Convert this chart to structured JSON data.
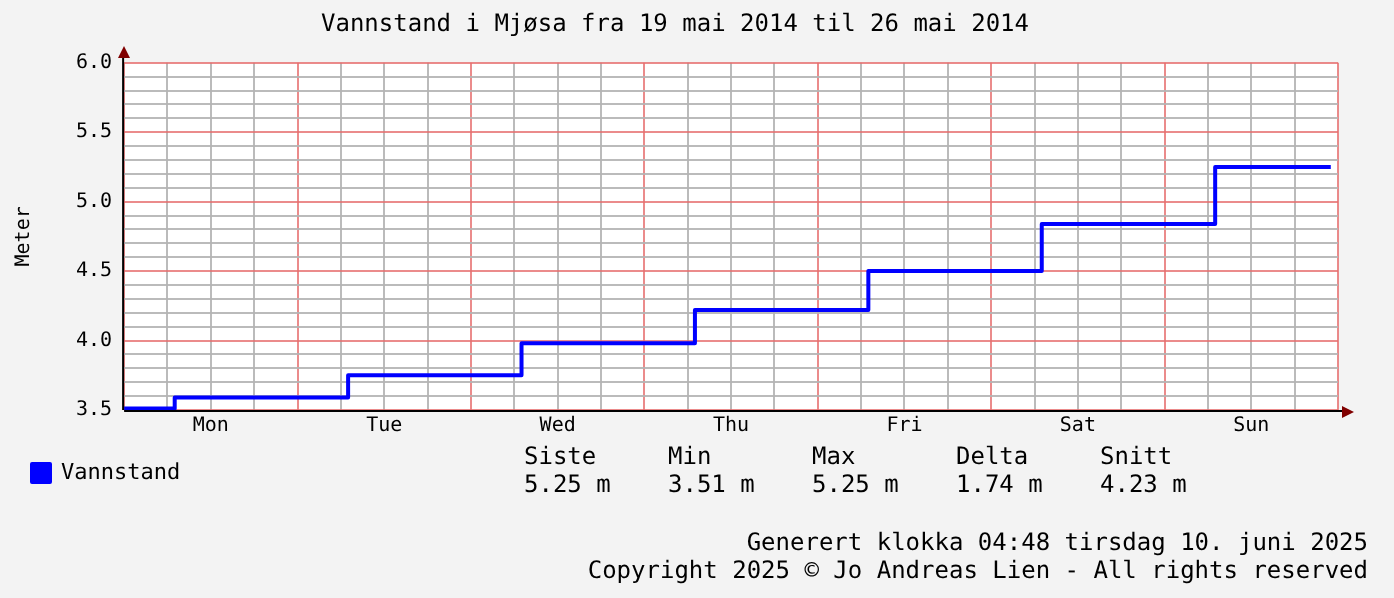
{
  "chart_data": {
    "type": "step",
    "title": "Vannstand i Mjøsa fra 19 mai 2014 til 26 mai 2014",
    "ylabel": "Meter",
    "categories": [
      null,
      null,
      null,
      null,
      null,
      null,
      null,
      null,
      null,
      null,
      null,
      null,
      "Mon",
      null,
      null,
      null,
      null,
      null,
      null,
      null,
      null,
      null,
      null,
      null,
      null,
      null,
      null,
      null,
      null,
      null,
      null,
      null,
      null,
      null,
      null,
      null,
      "Tue",
      null,
      null,
      null,
      null,
      null,
      null,
      null,
      null,
      null,
      null,
      null,
      null,
      null,
      null,
      null,
      null,
      null,
      null,
      null,
      null,
      null,
      null,
      null,
      "Wed",
      null,
      null,
      null,
      null,
      null,
      null,
      null,
      null,
      null,
      null,
      null,
      null,
      null,
      null,
      null,
      null,
      null,
      null,
      null,
      null,
      null,
      null,
      null,
      "Thu",
      null,
      null,
      null,
      null,
      null,
      null,
      null,
      null,
      null,
      null,
      null,
      null,
      null,
      null,
      null,
      null,
      null,
      null,
      null,
      null,
      null,
      null,
      null,
      "Fri",
      null,
      null,
      null,
      null,
      null,
      null,
      null,
      null,
      null,
      null,
      null,
      null,
      null,
      null,
      null,
      null,
      null,
      null,
      null,
      null,
      null,
      null,
      null,
      "Sat",
      null,
      null,
      null,
      null,
      null,
      null,
      null,
      null,
      null,
      null,
      null,
      null,
      null,
      null,
      null,
      null,
      null,
      null,
      null,
      null,
      null,
      null,
      null,
      "Sun",
      null,
      null,
      null,
      null,
      null,
      null,
      null,
      null,
      null,
      null,
      null,
      null
    ],
    "series": [
      {
        "name": "Vannstand",
        "color": "#0000ff",
        "values": [
          3.51,
          3.51,
          3.51,
          3.51,
          3.51,
          3.51,
          3.51,
          3.59,
          3.59,
          3.59,
          3.59,
          3.59,
          3.59,
          3.59,
          3.59,
          3.59,
          3.59,
          3.59,
          3.59,
          3.59,
          3.59,
          3.59,
          3.59,
          3.59,
          3.59,
          3.59,
          3.59,
          3.59,
          3.59,
          3.59,
          3.59,
          3.75,
          3.75,
          3.75,
          3.75,
          3.75,
          3.75,
          3.75,
          3.75,
          3.75,
          3.75,
          3.75,
          3.75,
          3.75,
          3.75,
          3.75,
          3.75,
          3.75,
          3.75,
          3.75,
          3.75,
          3.75,
          3.75,
          3.75,
          3.75,
          3.98,
          3.98,
          3.98,
          3.98,
          3.98,
          3.98,
          3.98,
          3.98,
          3.98,
          3.98,
          3.98,
          3.98,
          3.98,
          3.98,
          3.98,
          3.98,
          3.98,
          3.98,
          3.98,
          3.98,
          3.98,
          3.98,
          3.98,
          3.98,
          4.22,
          4.22,
          4.22,
          4.22,
          4.22,
          4.22,
          4.22,
          4.22,
          4.22,
          4.22,
          4.22,
          4.22,
          4.22,
          4.22,
          4.22,
          4.22,
          4.22,
          4.22,
          4.22,
          4.22,
          4.22,
          4.22,
          4.22,
          4.22,
          4.5,
          4.5,
          4.5,
          4.5,
          4.5,
          4.5,
          4.5,
          4.5,
          4.5,
          4.5,
          4.5,
          4.5,
          4.5,
          4.5,
          4.5,
          4.5,
          4.5,
          4.5,
          4.5,
          4.5,
          4.5,
          4.5,
          4.5,
          4.5,
          4.84,
          4.84,
          4.84,
          4.84,
          4.84,
          4.84,
          4.84,
          4.84,
          4.84,
          4.84,
          4.84,
          4.84,
          4.84,
          4.84,
          4.84,
          4.84,
          4.84,
          4.84,
          4.84,
          4.84,
          4.84,
          4.84,
          4.84,
          4.84,
          5.25,
          5.25,
          5.25,
          5.25,
          5.25,
          5.25,
          5.25,
          5.25,
          5.25,
          5.25,
          5.25,
          5.25,
          5.25,
          5.25,
          5.25,
          5.25,
          5.25,
          null
        ]
      }
    ],
    "ylim": [
      3.5,
      6.0
    ],
    "yticks": [
      {
        "value": 3.5,
        "label": "3.5"
      },
      {
        "value": 3.6,
        "label": null
      },
      {
        "value": 3.7,
        "label": null
      },
      {
        "value": 3.8,
        "label": null
      },
      {
        "value": 3.9,
        "label": null
      },
      {
        "value": 4.0,
        "label": "4.0"
      },
      {
        "value": 4.1,
        "label": null
      },
      {
        "value": 4.2,
        "label": null
      },
      {
        "value": 4.3,
        "label": null
      },
      {
        "value": 4.4,
        "label": null
      },
      {
        "value": 4.5,
        "label": "4.5"
      },
      {
        "value": 4.6,
        "label": null
      },
      {
        "value": 4.7,
        "label": null
      },
      {
        "value": 4.8,
        "label": null
      },
      {
        "value": 4.9,
        "label": null
      },
      {
        "value": 5.0,
        "label": "5.0"
      },
      {
        "value": 5.1,
        "label": null
      },
      {
        "value": 5.2,
        "label": null
      },
      {
        "value": 5.3,
        "label": null
      },
      {
        "value": 5.4,
        "label": null
      },
      {
        "value": 5.5,
        "label": "5.5"
      },
      {
        "value": 5.6,
        "label": null
      },
      {
        "value": 5.7,
        "label": null
      },
      {
        "value": 5.8,
        "label": null
      },
      {
        "value": 5.9,
        "label": null
      },
      {
        "value": 6.0,
        "label": "6.0"
      }
    ],
    "grid": true,
    "legend": "bottom left",
    "marker": "none",
    "line_style": "solid",
    "annotations": [
      "Siste",
      "Min",
      "Max",
      "Delta",
      "Snitt",
      "5.25 m",
      "3.51 m",
      "5.25 m",
      "1.74 m",
      "4.23 m",
      "Generert klokka 04:48 tirsdag 10. juni 2025",
      "Copyright 2025 © Jo Andreas Lien - All rights reserved"
    ]
  }
}
